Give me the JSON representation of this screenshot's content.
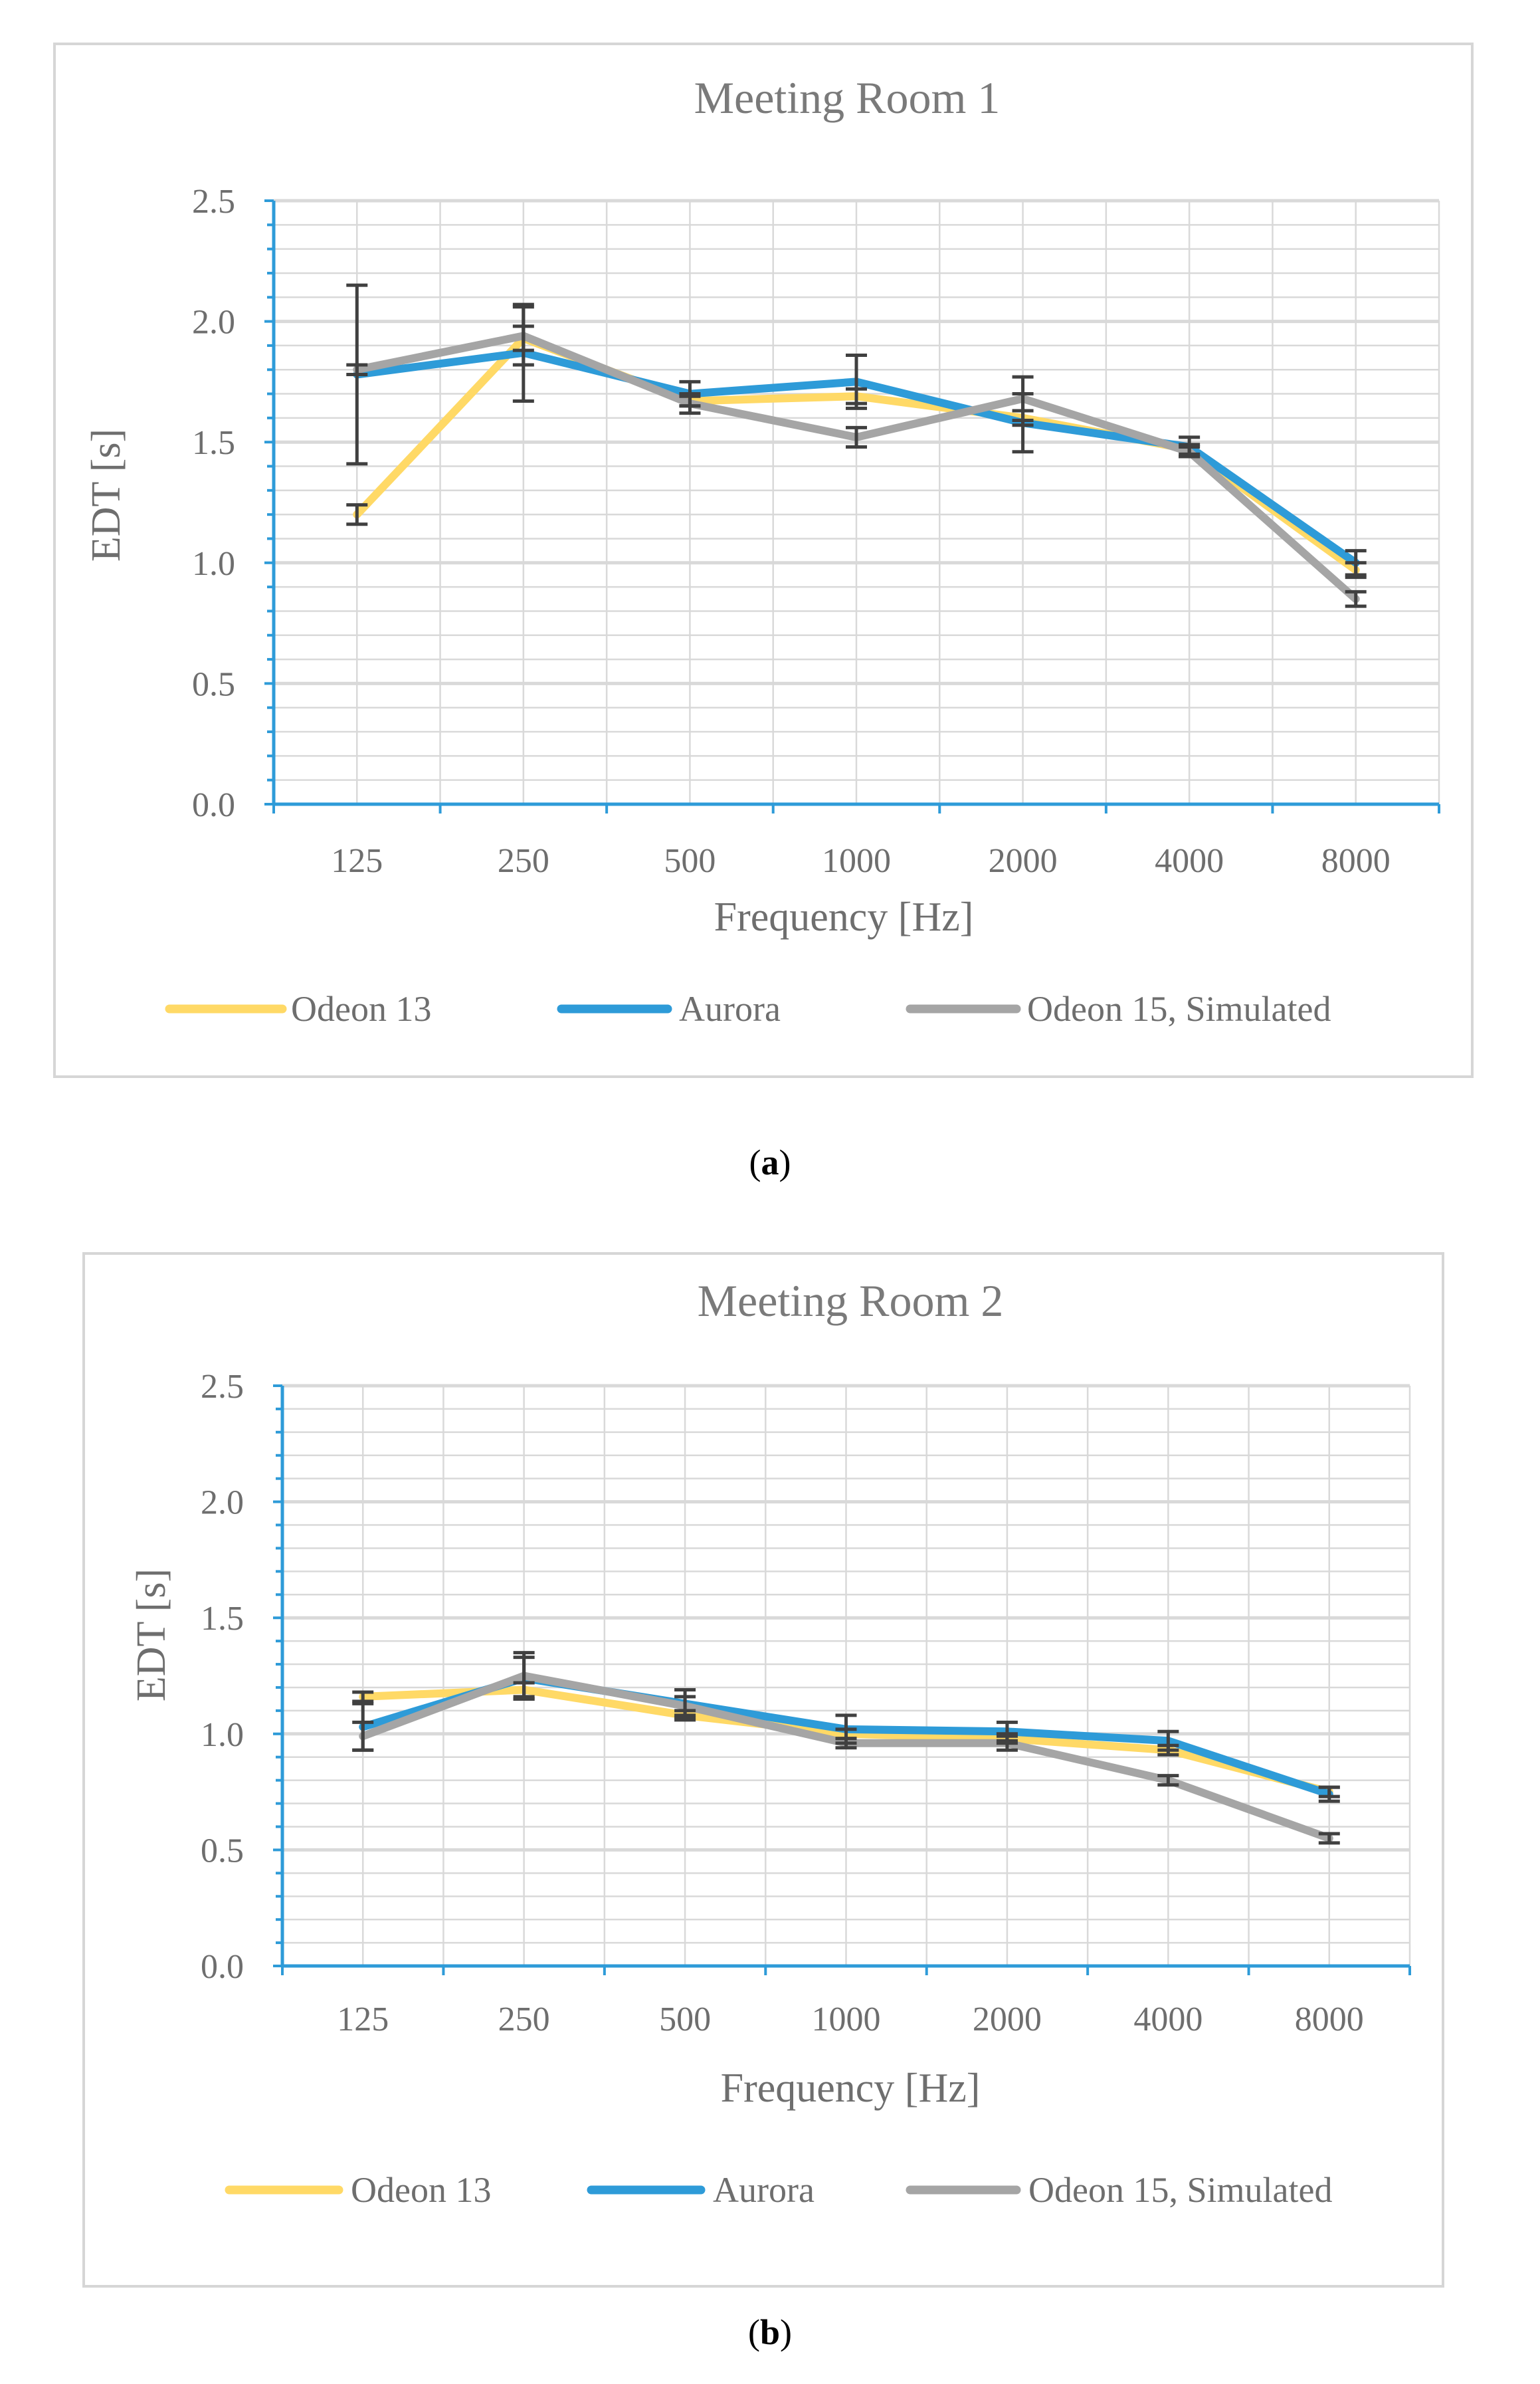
{
  "colors": {
    "odeon13": "#FFD966",
    "aurora": "#2E9BD8",
    "odeon15": "#A5A5A5",
    "axis": "#2E9BD8",
    "grid": "#D9D9D9",
    "errorbar": "#404040"
  },
  "captions": [
    {
      "open": "(",
      "letter": "a",
      "close": ")"
    },
    {
      "open": "(",
      "letter": "b",
      "close": ")"
    }
  ],
  "chart_data": [
    {
      "type": "line",
      "title": "Meeting Room 1",
      "xlabel": "Frequency [Hz]",
      "ylabel": "EDT [s]",
      "categories": [
        "125",
        "250",
        "500",
        "1000",
        "2000",
        "4000",
        "8000"
      ],
      "ylim": [
        0,
        2.5
      ],
      "yticks": [
        "0.0",
        "0.5",
        "1.0",
        "1.5",
        "2.0",
        "2.5"
      ],
      "grid": true,
      "legend_position": "bottom",
      "series": [
        {
          "name": "Odeon 13",
          "color_key": "odeon13",
          "values": [
            1.2,
            1.93,
            1.67,
            1.69,
            1.6,
            1.47,
            0.97
          ]
        },
        {
          "name": "Aurora",
          "color_key": "aurora",
          "values": [
            1.78,
            1.87,
            1.7,
            1.75,
            1.58,
            1.48,
            1.0
          ]
        },
        {
          "name": "Odeon 15, Simulated",
          "color_key": "odeon15",
          "values": [
            1.8,
            1.94,
            1.66,
            1.52,
            1.68,
            1.46,
            0.85
          ]
        }
      ],
      "error_bars": [
        {
          "series": "Odeon 13",
          "values": [
            1.2,
            1.93,
            1.67,
            1.69,
            1.6,
            1.47,
            0.97
          ],
          "err": [
            0.04,
            0.05,
            0.02,
            0.03,
            0.03,
            0.02,
            0.03
          ]
        },
        {
          "series": "Aurora",
          "values": [
            1.78,
            1.87,
            1.7,
            1.75,
            1.58,
            1.48,
            1.0
          ],
          "err": [
            0.37,
            0.2,
            0.05,
            0.11,
            0.12,
            0.04,
            0.05
          ]
        },
        {
          "series": "Odeon 15, Simulated",
          "values": [
            1.8,
            1.94,
            1.66,
            1.52,
            1.68,
            1.46,
            0.85
          ],
          "err": [
            0.02,
            0.12,
            0.04,
            0.04,
            0.09,
            0.02,
            0.03
          ]
        }
      ]
    },
    {
      "type": "line",
      "title": "Meeting Room 2",
      "xlabel": "Frequency [Hz]",
      "ylabel": "EDT [s]",
      "categories": [
        "125",
        "250",
        "500",
        "1000",
        "2000",
        "4000",
        "8000"
      ],
      "ylim": [
        0,
        2.5
      ],
      "yticks": [
        "0.0",
        "0.5",
        "1.0",
        "1.5",
        "2.0",
        "2.5"
      ],
      "grid": true,
      "legend_position": "bottom",
      "series": [
        {
          "name": "Odeon 13",
          "color_key": "odeon13",
          "values": [
            1.16,
            1.19,
            1.08,
            1.0,
            0.98,
            0.93,
            0.75
          ]
        },
        {
          "name": "Aurora",
          "color_key": "aurora",
          "values": [
            1.03,
            1.24,
            1.13,
            1.02,
            1.01,
            0.97,
            0.74
          ]
        },
        {
          "name": "Odeon 15, Simulated",
          "color_key": "odeon15",
          "values": [
            0.99,
            1.25,
            1.12,
            0.96,
            0.96,
            0.8,
            0.55
          ]
        }
      ],
      "error_bars": [
        {
          "series": "Odeon 13",
          "values": [
            1.16,
            1.19,
            1.08,
            1.0,
            0.98,
            0.93,
            0.75
          ],
          "err": [
            0.02,
            0.03,
            0.02,
            0.02,
            0.02,
            0.02,
            0.02
          ]
        },
        {
          "series": "Aurora",
          "values": [
            1.03,
            1.24,
            1.13,
            1.02,
            1.01,
            0.97,
            0.74
          ],
          "err": [
            0.1,
            0.09,
            0.06,
            0.06,
            0.04,
            0.04,
            0.03
          ]
        },
        {
          "series": "Odeon 15, Simulated",
          "values": [
            0.99,
            1.25,
            1.12,
            0.96,
            0.96,
            0.8,
            0.55
          ],
          "err": [
            0.06,
            0.1,
            0.04,
            0.02,
            0.03,
            0.02,
            0.02
          ]
        }
      ]
    }
  ]
}
